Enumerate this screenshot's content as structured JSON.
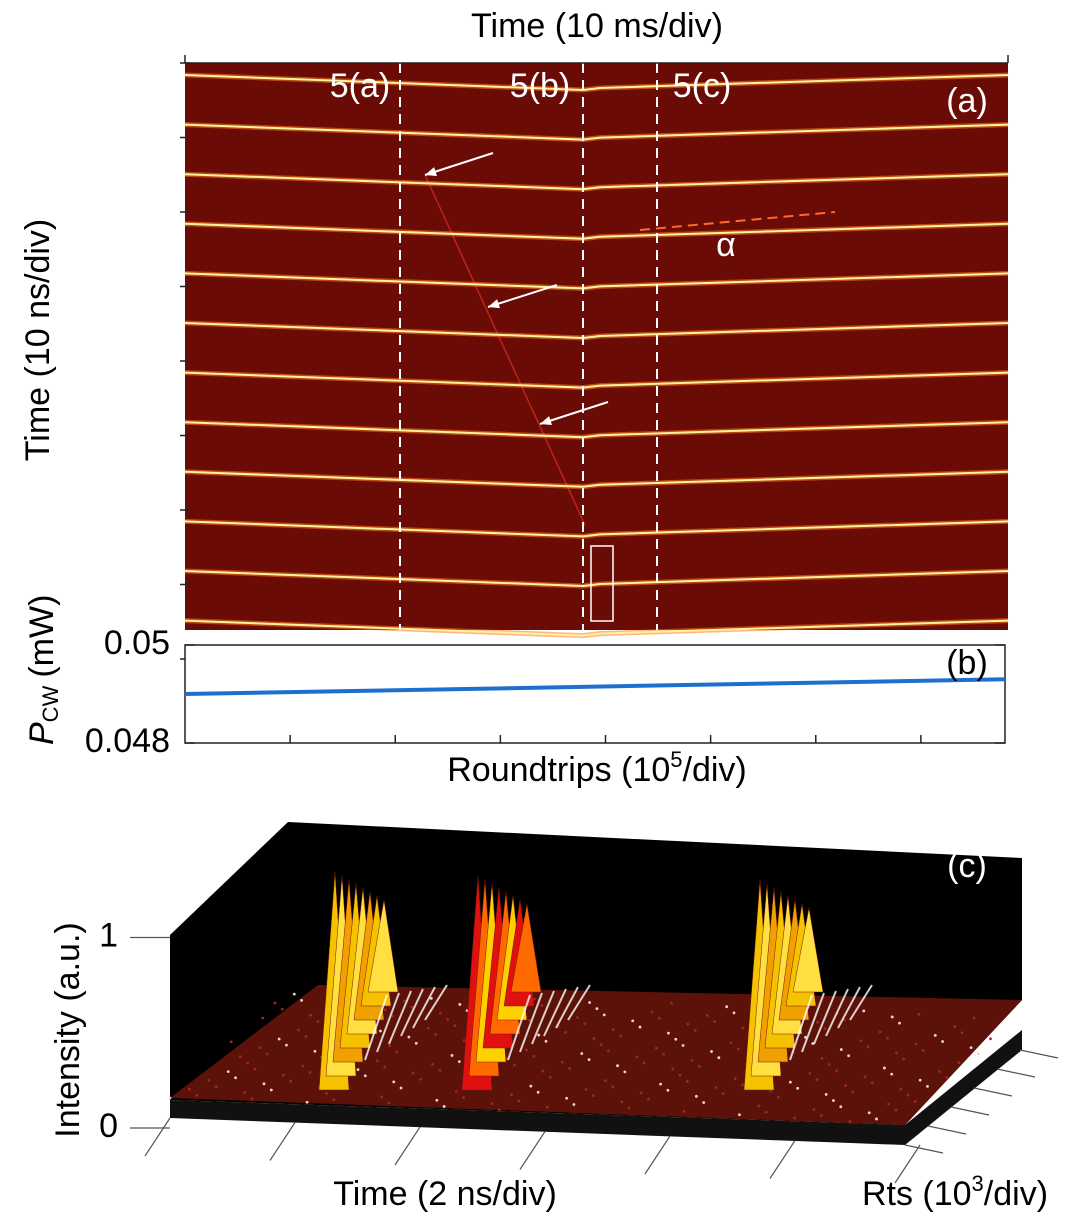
{
  "chart_data": [
    {
      "type": "image",
      "title": "Time (10 ms/div)",
      "y_label": "Time (10 ns/div)",
      "panel_label": "(a)",
      "annotations": [
        "5(a)",
        "5(b)",
        "5(c)",
        "α"
      ]
    },
    {
      "type": "line",
      "panel_label": "(b)",
      "y_label": {
        "symbol": "P",
        "subscript": "CW",
        "unit": "(mW)"
      },
      "x_label": {
        "text": "Roundtrips (10",
        "superscript": "5",
        "suffix": "/div)"
      },
      "ylim": [
        0.048,
        0.05
      ],
      "yticks": [
        0.048,
        0.05
      ],
      "series": [
        {
          "color": "#1f6fd0",
          "values": [
            0.049,
            0.0493
          ]
        }
      ]
    },
    {
      "type": "surface",
      "panel_label": "(c)",
      "z_label": "Intensity (a.u.)",
      "x_label": "Time (2 ns/div)",
      "y_label": {
        "text": "Rts (10",
        "superscript": "3",
        "suffix": "/div)"
      },
      "zlim": [
        0,
        1.05
      ],
      "zticks": [
        0,
        1
      ]
    }
  ]
}
